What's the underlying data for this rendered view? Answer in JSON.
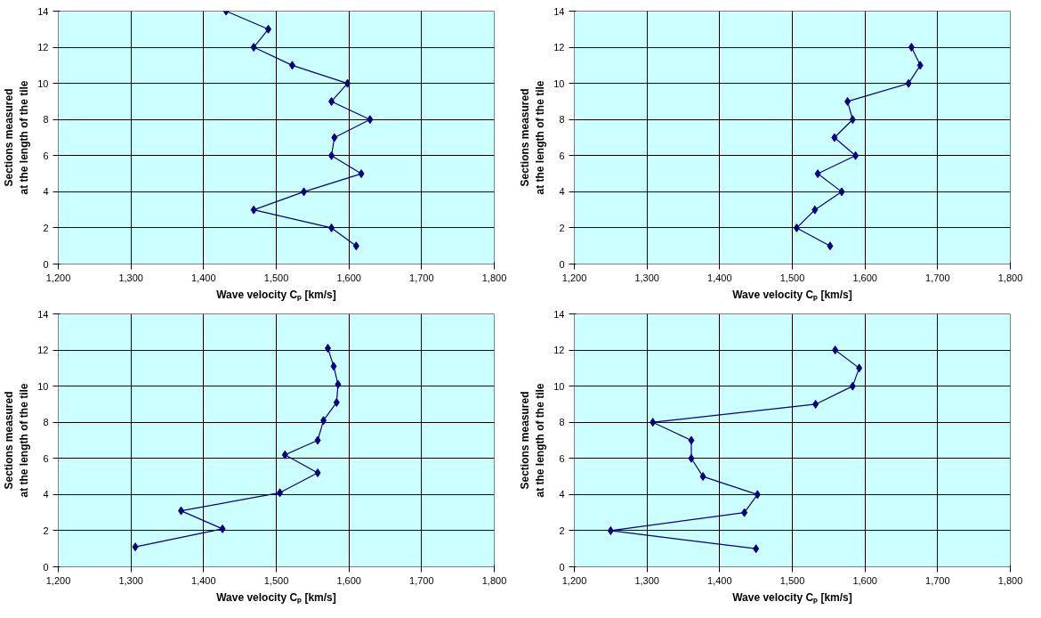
{
  "chart_data": [
    {
      "type": "line",
      "xlabel": "Wave velocity Cₚ [km/s]",
      "ylabel": "Sections measured\nat the length of the tile",
      "marker": "diamond",
      "grid": true,
      "xlim": [
        1200,
        1800
      ],
      "ylim": [
        0,
        14
      ],
      "xticks": [
        {
          "value": 1200,
          "label": "1,200"
        },
        {
          "value": 1300,
          "label": "1,300"
        },
        {
          "value": 1400,
          "label": "1,400"
        },
        {
          "value": 1500,
          "label": "1,500"
        },
        {
          "value": 1600,
          "label": "1,600"
        },
        {
          "value": 1700,
          "label": "1,700"
        },
        {
          "value": 1800,
          "label": "1,800"
        }
      ],
      "yticks": [
        0,
        2,
        4,
        6,
        8,
        10,
        12,
        14
      ],
      "series": [
        {
          "color": "#000080",
          "x": [
            1610,
            1576,
            1469,
            1538,
            1617,
            1576,
            1580,
            1629,
            1576,
            1598,
            1522,
            1469,
            1489,
            1431
          ],
          "values": [
            1,
            2,
            3,
            4,
            5,
            6,
            7,
            8,
            9,
            10,
            11,
            12,
            13,
            14
          ]
        }
      ]
    },
    {
      "type": "line",
      "xlabel": "Wave velocity Cₚ [km/s]",
      "ylabel": "Sections measured\nat the length of the tile",
      "marker": "diamond",
      "grid": true,
      "xlim": [
        1200,
        1800
      ],
      "ylim": [
        0,
        14
      ],
      "xticks": [
        {
          "value": 1200,
          "label": "1,200"
        },
        {
          "value": 1300,
          "label": "1,300"
        },
        {
          "value": 1400,
          "label": "1,400"
        },
        {
          "value": 1500,
          "label": "1,500"
        },
        {
          "value": 1600,
          "label": "1,600"
        },
        {
          "value": 1700,
          "label": "1,700"
        },
        {
          "value": 1800,
          "label": "1,800"
        }
      ],
      "yticks": [
        0,
        2,
        4,
        6,
        8,
        10,
        12,
        14
      ],
      "series": [
        {
          "color": "#000080",
          "x": [
            1552,
            1506,
            1531,
            1568,
            1535,
            1587,
            1558,
            1583,
            1576,
            1660,
            1676,
            1664
          ],
          "values": [
            1,
            2,
            3,
            4,
            5,
            6,
            7,
            8,
            9,
            10,
            11,
            12
          ]
        }
      ]
    },
    {
      "type": "line",
      "xlabel": "Wave velocity Cₚ [km/s]",
      "ylabel": "Sections measured\nat the length of the tile",
      "marker": "diamond",
      "grid": true,
      "xlim": [
        1200,
        1800
      ],
      "ylim": [
        0,
        14
      ],
      "xticks": [
        {
          "value": 1200,
          "label": "1,200"
        },
        {
          "value": 1300,
          "label": "1,300"
        },
        {
          "value": 1400,
          "label": "1,400"
        },
        {
          "value": 1500,
          "label": "1,500"
        },
        {
          "value": 1600,
          "label": "1,600"
        },
        {
          "value": 1700,
          "label": "1,700"
        },
        {
          "value": 1800,
          "label": "1,800"
        }
      ],
      "yticks": [
        0,
        2,
        4,
        6,
        8,
        10,
        12,
        14
      ],
      "series": [
        {
          "color": "#000080",
          "x": [
            1306,
            1426,
            1369,
            1505,
            1557,
            1512,
            1557,
            1565,
            1583,
            1585,
            1579,
            1571
          ],
          "values": [
            1.1,
            2.1,
            3.1,
            4.1,
            5.2,
            6.2,
            7,
            8.1,
            9.1,
            10.1,
            11.1,
            12.1
          ]
        }
      ]
    },
    {
      "type": "line",
      "xlabel": "Wave velocity Cₚ [km/s]",
      "ylabel": "Sections measured\nat the length of the tile",
      "marker": "diamond",
      "grid": true,
      "xlim": [
        1200,
        1800
      ],
      "ylim": [
        0,
        14
      ],
      "xticks": [
        {
          "value": 1200,
          "label": "1,200"
        },
        {
          "value": 1300,
          "label": "1,300"
        },
        {
          "value": 1400,
          "label": "1,400"
        },
        {
          "value": 1500,
          "label": "1,500"
        },
        {
          "value": 1600,
          "label": "1,600"
        },
        {
          "value": 1700,
          "label": "1,700"
        },
        {
          "value": 1800,
          "label": "1,800"
        }
      ],
      "yticks": [
        0,
        2,
        4,
        6,
        8,
        10,
        12,
        14
      ],
      "series": [
        {
          "color": "#000080",
          "x": [
            1450,
            1250,
            1434,
            1452,
            1377,
            1361,
            1361,
            1308,
            1532,
            1583,
            1592,
            1559
          ],
          "values": [
            1,
            2,
            3,
            4,
            5,
            6,
            7,
            8,
            9,
            10,
            11,
            12
          ]
        }
      ]
    }
  ]
}
